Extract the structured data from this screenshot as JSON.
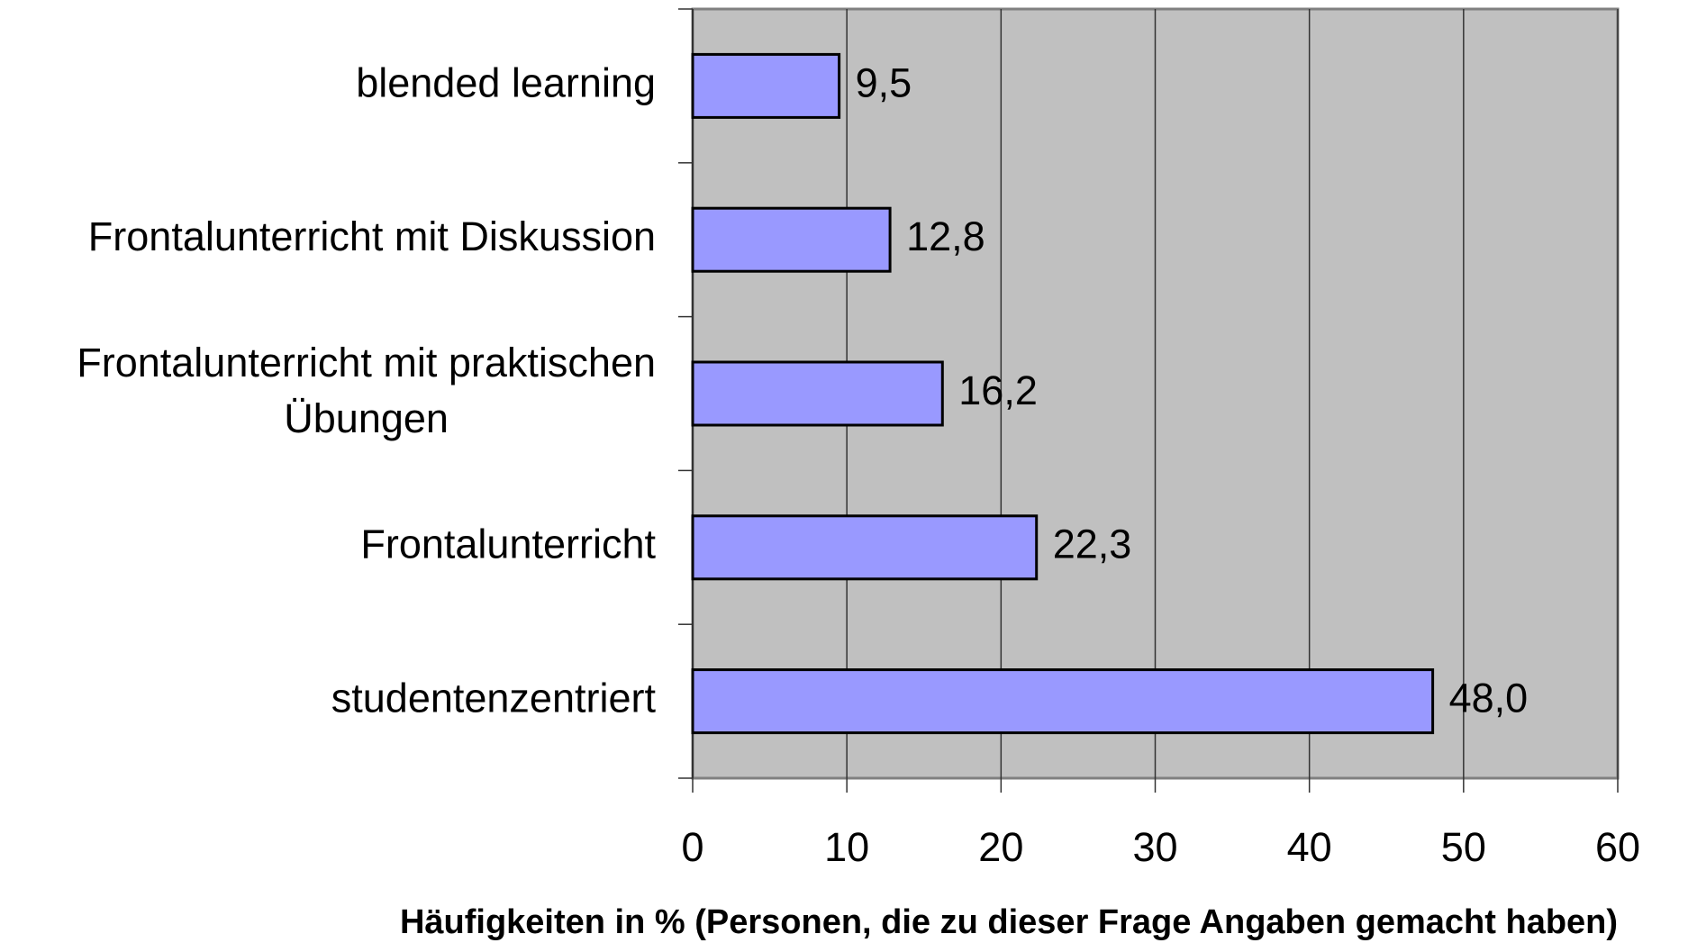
{
  "chart_data": {
    "type": "barh",
    "categories": [
      "blended learning",
      "Frontalunterricht mit Diskussion",
      "Frontalunterricht mit praktischen\nÜbungen",
      "Frontalunterricht",
      "studentenzentriert"
    ],
    "values": [
      9.5,
      12.8,
      16.2,
      22.3,
      48.0
    ],
    "value_labels": [
      "9,5",
      "12,8",
      "16,2",
      "22,3",
      "48,0"
    ],
    "color": "#9999ff",
    "xlim": [
      0,
      60
    ],
    "xticks": [
      0,
      10,
      20,
      30,
      40,
      50,
      60
    ],
    "grid": true,
    "xlabel": "Häufigkeiten in % (Personen, die zu dieser Frage Angaben gemacht haben)"
  }
}
